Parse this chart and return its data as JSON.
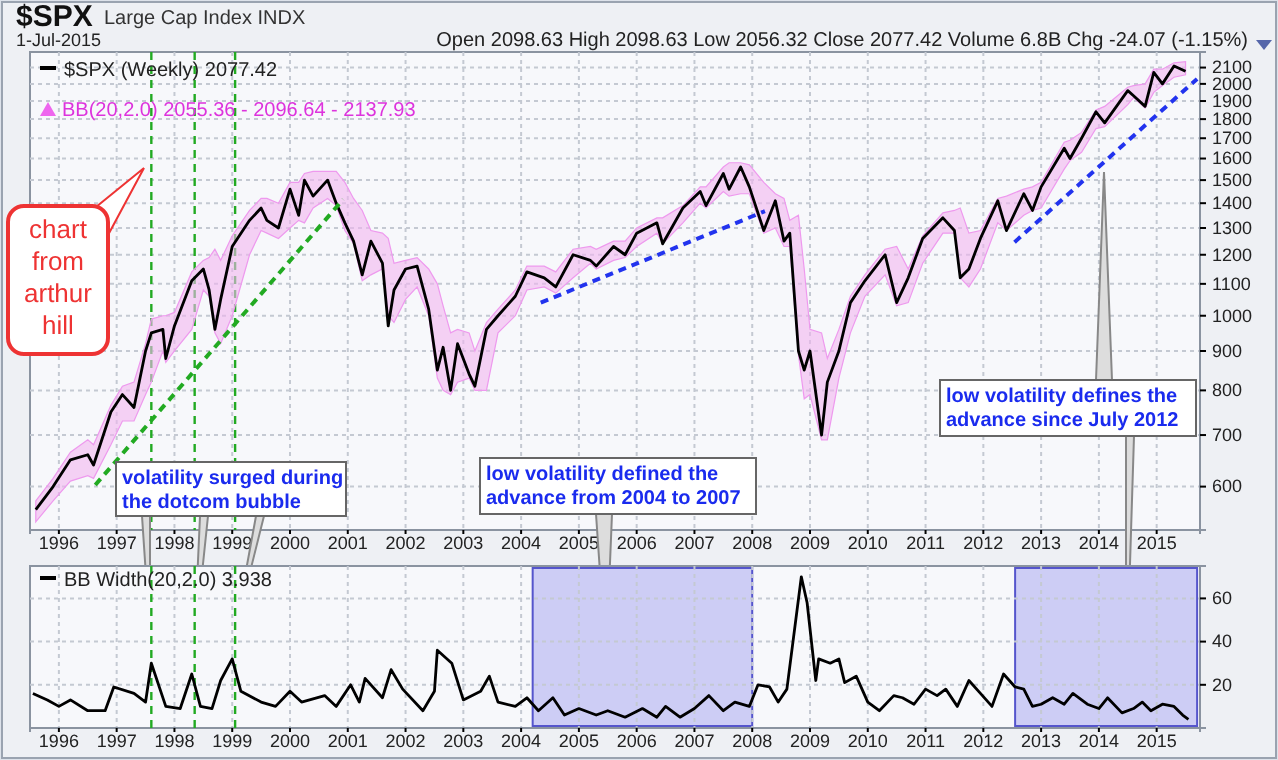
{
  "chart_data": [
    {
      "type": "line",
      "title": "$SPX",
      "subtitle": "Large Cap Index INDX",
      "annotations": [
        "1-Jul-2015",
        "Open 2098.63 High 2098.63 Low 2056.32 Close 2077.42 Volume 6.8B Chg -24.07 (-1.15%)",
        "BB(20,2.0) 2055.36 - 2096.64 - 2137.93",
        "chart from arthur hill",
        "volatility surged during the dotcom bubble",
        "low volatility defined the advance from 2004 to 2007",
        "low volatility defines the advance since July 2012"
      ],
      "log": "y",
      "grid": true,
      "legend": "top left",
      "marker": "none",
      "xlim": [
        1995.5,
        2015.75
      ],
      "xticks": [
        1996,
        1997,
        1998,
        1999,
        2000,
        2001,
        2002,
        2003,
        2004,
        2005,
        2006,
        2007,
        2008,
        2009,
        2010,
        2011,
        2012,
        2013,
        2014,
        2015
      ],
      "ylim": [
        527,
        2200
      ],
      "yticks": [
        600,
        700,
        800,
        900,
        1000,
        1100,
        1200,
        1300,
        1400,
        1500,
        1600,
        1700,
        1800,
        1900,
        2000,
        2100
      ],
      "ref_lines": [
        {
          "axis": "x",
          "value": 1997.6,
          "color": "#22aa22",
          "line_style": "dashed"
        },
        {
          "axis": "x",
          "value": 1998.35,
          "color": "#22aa22",
          "line_style": "dashed"
        },
        {
          "axis": "x",
          "value": 1999.05,
          "color": "#22aa22",
          "line_style": "dashed"
        }
      ],
      "series": [
        {
          "name": "$SPX (Weekly) 2077.42",
          "color": "#000000",
          "line_style": "solid",
          "x": [
            1995.6,
            1995.9,
            1996.2,
            1996.5,
            1996.6,
            1996.9,
            1997.1,
            1997.3,
            1997.5,
            1997.6,
            1997.8,
            1997.85,
            1998.0,
            1998.3,
            1998.5,
            1998.6,
            1998.7,
            1998.8,
            1999.0,
            1999.3,
            1999.5,
            1999.6,
            1999.8,
            2000.0,
            2000.15,
            2000.25,
            2000.4,
            2000.65,
            2000.8,
            2000.95,
            2001.1,
            2001.25,
            2001.4,
            2001.6,
            2001.7,
            2001.8,
            2002.0,
            2002.2,
            2002.4,
            2002.55,
            2002.65,
            2002.78,
            2002.9,
            2003.1,
            2003.2,
            2003.4,
            2003.6,
            2003.9,
            2004.1,
            2004.4,
            2004.6,
            2004.9,
            2005.2,
            2005.3,
            2005.6,
            2005.8,
            2006.0,
            2006.35,
            2006.45,
            2006.8,
            2007.1,
            2007.2,
            2007.5,
            2007.6,
            2007.8,
            2007.95,
            2008.2,
            2008.4,
            2008.55,
            2008.65,
            2008.8,
            2008.9,
            2009.0,
            2009.2,
            2009.3,
            2009.5,
            2009.7,
            2009.95,
            2010.3,
            2010.5,
            2010.7,
            2010.95,
            2011.3,
            2011.5,
            2011.6,
            2011.75,
            2011.95,
            2012.25,
            2012.4,
            2012.7,
            2012.85,
            2013.0,
            2013.4,
            2013.5,
            2013.7,
            2013.95,
            2014.1,
            2014.5,
            2014.6,
            2014.8,
            2014.95,
            2015.1,
            2015.3,
            2015.5
          ],
          "values": [
            560,
            600,
            650,
            660,
            640,
            750,
            790,
            760,
            900,
            950,
            960,
            880,
            970,
            1110,
            1150,
            1080,
            960,
            1050,
            1230,
            1330,
            1380,
            1330,
            1300,
            1460,
            1350,
            1500,
            1430,
            1500,
            1400,
            1320,
            1250,
            1130,
            1250,
            1170,
            970,
            1080,
            1150,
            1160,
            1020,
            850,
            910,
            800,
            920,
            840,
            810,
            960,
            1000,
            1060,
            1140,
            1120,
            1090,
            1200,
            1180,
            1160,
            1230,
            1200,
            1280,
            1320,
            1240,
            1380,
            1450,
            1390,
            1530,
            1460,
            1560,
            1470,
            1290,
            1410,
            1250,
            1280,
            900,
            850,
            900,
            700,
            820,
            900,
            1040,
            1110,
            1200,
            1040,
            1120,
            1260,
            1340,
            1290,
            1120,
            1150,
            1260,
            1410,
            1290,
            1440,
            1370,
            1470,
            1650,
            1600,
            1700,
            1840,
            1780,
            1960,
            1930,
            1870,
            2070,
            2000,
            2110,
            2077
          ],
          "lower": [
            540,
            575,
            610,
            620,
            615,
            680,
            730,
            730,
            790,
            820,
            900,
            870,
            900,
            960,
            1080,
            1060,
            950,
            920,
            1000,
            1200,
            1290,
            1280,
            1260,
            1300,
            1330,
            1320,
            1380,
            1420,
            1390,
            1290,
            1240,
            1110,
            1130,
            1150,
            1000,
            980,
            1050,
            1090,
            1000,
            830,
            800,
            790,
            820,
            830,
            800,
            800,
            950,
            1000,
            1080,
            1090,
            1070,
            1120,
            1170,
            1150,
            1180,
            1190,
            1230,
            1280,
            1240,
            1320,
            1400,
            1380,
            1450,
            1430,
            1440,
            1440,
            1280,
            1300,
            1230,
            1230,
            890,
            780,
            790,
            690,
            690,
            830,
            950,
            1060,
            1130,
            1030,
            1040,
            1170,
            1280,
            1280,
            1120,
            1090,
            1150,
            1320,
            1290,
            1350,
            1370,
            1380,
            1550,
            1590,
            1630,
            1750,
            1760,
            1880,
            1920,
            1860,
            1950,
            1990,
            2040,
            2055
          ],
          "upper": [
            575,
            615,
            665,
            690,
            680,
            765,
            810,
            820,
            920,
            990,
            1000,
            1000,
            1010,
            1140,
            1180,
            1190,
            1220,
            1180,
            1270,
            1370,
            1420,
            1420,
            1400,
            1490,
            1490,
            1530,
            1540,
            1540,
            1540,
            1490,
            1420,
            1370,
            1290,
            1280,
            1260,
            1170,
            1180,
            1190,
            1150,
            1100,
            1030,
            950,
            960,
            950,
            900,
            980,
            1020,
            1080,
            1160,
            1160,
            1140,
            1220,
            1230,
            1220,
            1250,
            1250,
            1300,
            1340,
            1340,
            1390,
            1470,
            1470,
            1560,
            1580,
            1580,
            1570,
            1490,
            1440,
            1420,
            1330,
            1350,
            1150,
            960,
            950,
            880,
            960,
            1060,
            1130,
            1220,
            1230,
            1150,
            1270,
            1360,
            1370,
            1380,
            1280,
            1290,
            1420,
            1430,
            1460,
            1470,
            1490,
            1680,
            1690,
            1730,
            1850,
            1870,
            1980,
            1990,
            2000,
            2090,
            2090,
            2130,
            2138
          ]
        },
        {
          "color": "#22aa22",
          "line_style": "dashed",
          "x": [
            1996.63,
            2000.92
          ],
          "values": [
            603,
            1416
          ]
        },
        {
          "color": "#2233ee",
          "line_style": "dashed",
          "x": [
            2004.34,
            2008.22
          ],
          "values": [
            1040,
            1367
          ]
        },
        {
          "color": "#2233ee",
          "line_style": "dashed",
          "x": [
            2012.54,
            2015.7
          ],
          "values": [
            1246,
            2030
          ]
        }
      ]
    },
    {
      "type": "line",
      "grid": true,
      "legend": "top left",
      "marker": "none",
      "xlim": [
        1995.5,
        2015.75
      ],
      "xticks": [
        1996,
        1997,
        1998,
        1999,
        2000,
        2001,
        2002,
        2003,
        2004,
        2005,
        2006,
        2007,
        2008,
        2009,
        2010,
        2011,
        2012,
        2013,
        2014,
        2015
      ],
      "ylim": [
        0,
        75
      ],
      "yticks": [
        20,
        40,
        60
      ],
      "bands": [
        {
          "axis": "x",
          "from": 2004.2,
          "to": 2008.0,
          "color": "#9999ee"
        },
        {
          "axis": "x",
          "from": 2012.55,
          "to": 2015.7,
          "color": "#9999ee"
        }
      ],
      "ref_lines": [
        {
          "axis": "x",
          "value": 1997.6,
          "color": "#22aa22",
          "line_style": "dashed"
        },
        {
          "axis": "x",
          "value": 1998.35,
          "color": "#22aa22",
          "line_style": "dashed"
        },
        {
          "axis": "x",
          "value": 1999.05,
          "color": "#22aa22",
          "line_style": "dashed"
        }
      ],
      "series": [
        {
          "name": "BB Width(20,2.0) 3.938",
          "color": "#000000",
          "line_style": "solid",
          "x": [
            1995.55,
            1995.8,
            1996.0,
            1996.2,
            1996.5,
            1996.8,
            1996.95,
            1997.3,
            1997.5,
            1997.6,
            1997.85,
            1998.1,
            1998.3,
            1998.45,
            1998.65,
            1998.8,
            1999.0,
            1999.15,
            1999.5,
            1999.75,
            2000.0,
            2000.2,
            2000.6,
            2000.8,
            2001.05,
            2001.2,
            2001.3,
            2001.6,
            2001.75,
            2001.95,
            2002.3,
            2002.5,
            2002.55,
            2002.8,
            2003.0,
            2003.3,
            2003.45,
            2003.6,
            2003.9,
            2004.1,
            2004.3,
            2004.55,
            2004.75,
            2005.0,
            2005.3,
            2005.5,
            2005.8,
            2006.1,
            2006.35,
            2006.5,
            2006.75,
            2007.0,
            2007.25,
            2007.5,
            2007.7,
            2007.95,
            2008.1,
            2008.3,
            2008.45,
            2008.6,
            2008.85,
            2008.95,
            2009.1,
            2009.15,
            2009.35,
            2009.5,
            2009.6,
            2009.8,
            2010.0,
            2010.2,
            2010.45,
            2010.6,
            2010.8,
            2011.0,
            2011.2,
            2011.35,
            2011.55,
            2011.75,
            2011.95,
            2012.15,
            2012.35,
            2012.55,
            2012.7,
            2012.85,
            2013.0,
            2013.2,
            2013.4,
            2013.55,
            2013.8,
            2014.0,
            2014.15,
            2014.4,
            2014.6,
            2014.75,
            2014.9,
            2015.1,
            2015.3,
            2015.45,
            2015.55
          ],
          "values": [
            16,
            13,
            10,
            13,
            8,
            8,
            19,
            16,
            12,
            30,
            10,
            9,
            25,
            10,
            9,
            22,
            32,
            17,
            12,
            10,
            17,
            12,
            15,
            10,
            20,
            12,
            23,
            14,
            27,
            18,
            8,
            17,
            36,
            30,
            13,
            17,
            24,
            12,
            10,
            14,
            8,
            14,
            6,
            9,
            6,
            8,
            5,
            9,
            5,
            10,
            5,
            9,
            15,
            8,
            12,
            10,
            20,
            19,
            12,
            18,
            70,
            58,
            22,
            32,
            30,
            32,
            21,
            24,
            12,
            8,
            15,
            14,
            11,
            18,
            15,
            18,
            10,
            22,
            16,
            10,
            25,
            19,
            18,
            10,
            11,
            14,
            11,
            16,
            11,
            9,
            14,
            7,
            9,
            12,
            8,
            11,
            10,
            6,
            4
          ]
        }
      ]
    }
  ]
}
